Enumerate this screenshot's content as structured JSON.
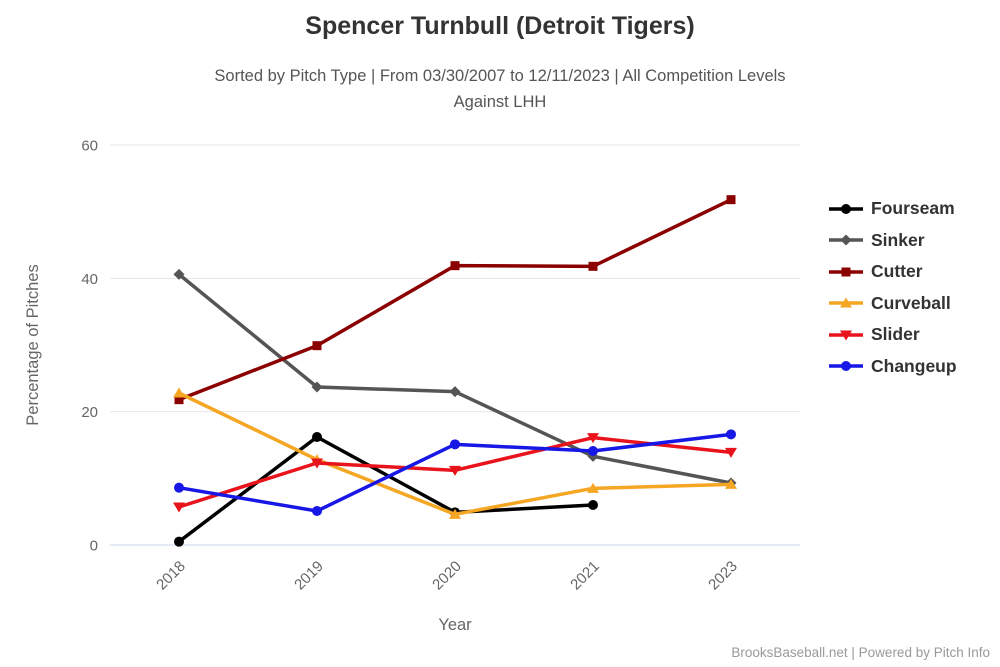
{
  "chart_data": {
    "type": "line",
    "title": "Spencer Turnbull (Detroit Tigers)",
    "subtitle_line1": "Sorted by Pitch Type | From 03/30/2007 to 12/11/2023 | All Competition Levels",
    "subtitle_line2": "Against LHH",
    "xlabel": "Year",
    "ylabel": "Percentage of Pitches",
    "categories": [
      "2018",
      "2019",
      "2020",
      "2021",
      "2023"
    ],
    "ylim": [
      0,
      60
    ],
    "yticks": [
      0,
      20,
      40,
      60
    ],
    "grid": "horizontal",
    "legend_position": "right",
    "series": [
      {
        "name": "Fourseam",
        "color": "#000000",
        "marker": "circle",
        "values": [
          0.5,
          16.2,
          4.9,
          6.0,
          null
        ]
      },
      {
        "name": "Sinker",
        "color": "#555555",
        "marker": "diamond",
        "values": [
          40.6,
          23.7,
          23.0,
          13.3,
          9.3
        ]
      },
      {
        "name": "Cutter",
        "color": "#8B0000",
        "marker": "square",
        "values": [
          21.8,
          29.9,
          41.9,
          41.8,
          51.8
        ]
      },
      {
        "name": "Curveball",
        "color": "#F5A623",
        "marker": "triangle",
        "values": [
          22.8,
          12.8,
          4.6,
          8.5,
          9.1
        ]
      },
      {
        "name": "Slider",
        "color": "#E8131B",
        "marker": "triangle-down",
        "values": [
          5.7,
          12.3,
          11.2,
          16.1,
          13.9
        ]
      },
      {
        "name": "Changeup",
        "color": "#1717E6",
        "marker": "circle",
        "values": [
          8.6,
          5.1,
          15.1,
          14.1,
          16.6
        ]
      }
    ],
    "colors": {
      "grid": "#E6E6E6",
      "axis_line": "#CCD6EB",
      "tick_label": "#666666",
      "axis_title": "#666666",
      "title": "#333333",
      "subtitle": "#555555",
      "footer": "#999999"
    }
  },
  "footer": {
    "credit": "BrooksBaseball.net | Powered by Pitch Info"
  }
}
